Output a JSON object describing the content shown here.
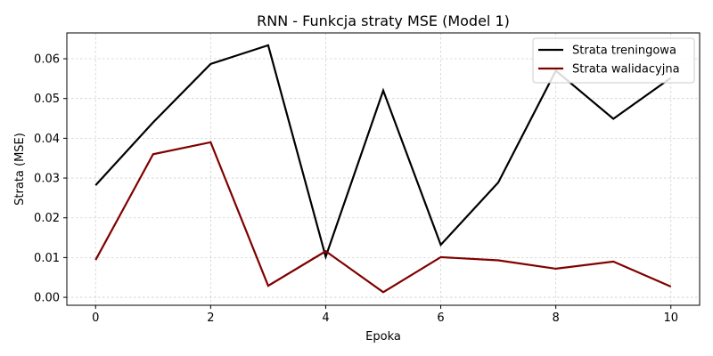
{
  "chart_data": {
    "type": "line",
    "title": "RNN - Funkcja straty MSE (Model 1)",
    "xlabel": "Epoka",
    "ylabel": "Strata (MSE)",
    "xlim": [
      -0.5,
      10.5
    ],
    "ylim": [
      -0.002,
      0.0665
    ],
    "xticks": [
      0,
      2,
      4,
      6,
      8,
      10
    ],
    "xtick_labels": [
      "0",
      "2",
      "4",
      "6",
      "8",
      "10"
    ],
    "yticks": [
      0.0,
      0.01,
      0.02,
      0.03,
      0.04,
      0.05,
      0.06
    ],
    "ytick_labels": [
      "0.00",
      "0.01",
      "0.02",
      "0.03",
      "0.04",
      "0.05",
      "0.06"
    ],
    "grid": true,
    "legend_position": "top-right",
    "x": [
      0,
      1,
      2,
      3,
      4,
      5,
      6,
      7,
      8,
      9,
      10
    ],
    "series": [
      {
        "name": "Strata treningowa",
        "color": "#000000",
        "values": [
          0.0282,
          0.044,
          0.0587,
          0.0634,
          0.0102,
          0.052,
          0.0132,
          0.0289,
          0.057,
          0.0449,
          0.0552
        ]
      },
      {
        "name": "Strata walidacyjna",
        "color": "#800000",
        "values": [
          0.0094,
          0.036,
          0.039,
          0.0029,
          0.0116,
          0.0013,
          0.0101,
          0.0093,
          0.0072,
          0.009,
          0.0027
        ]
      }
    ]
  }
}
